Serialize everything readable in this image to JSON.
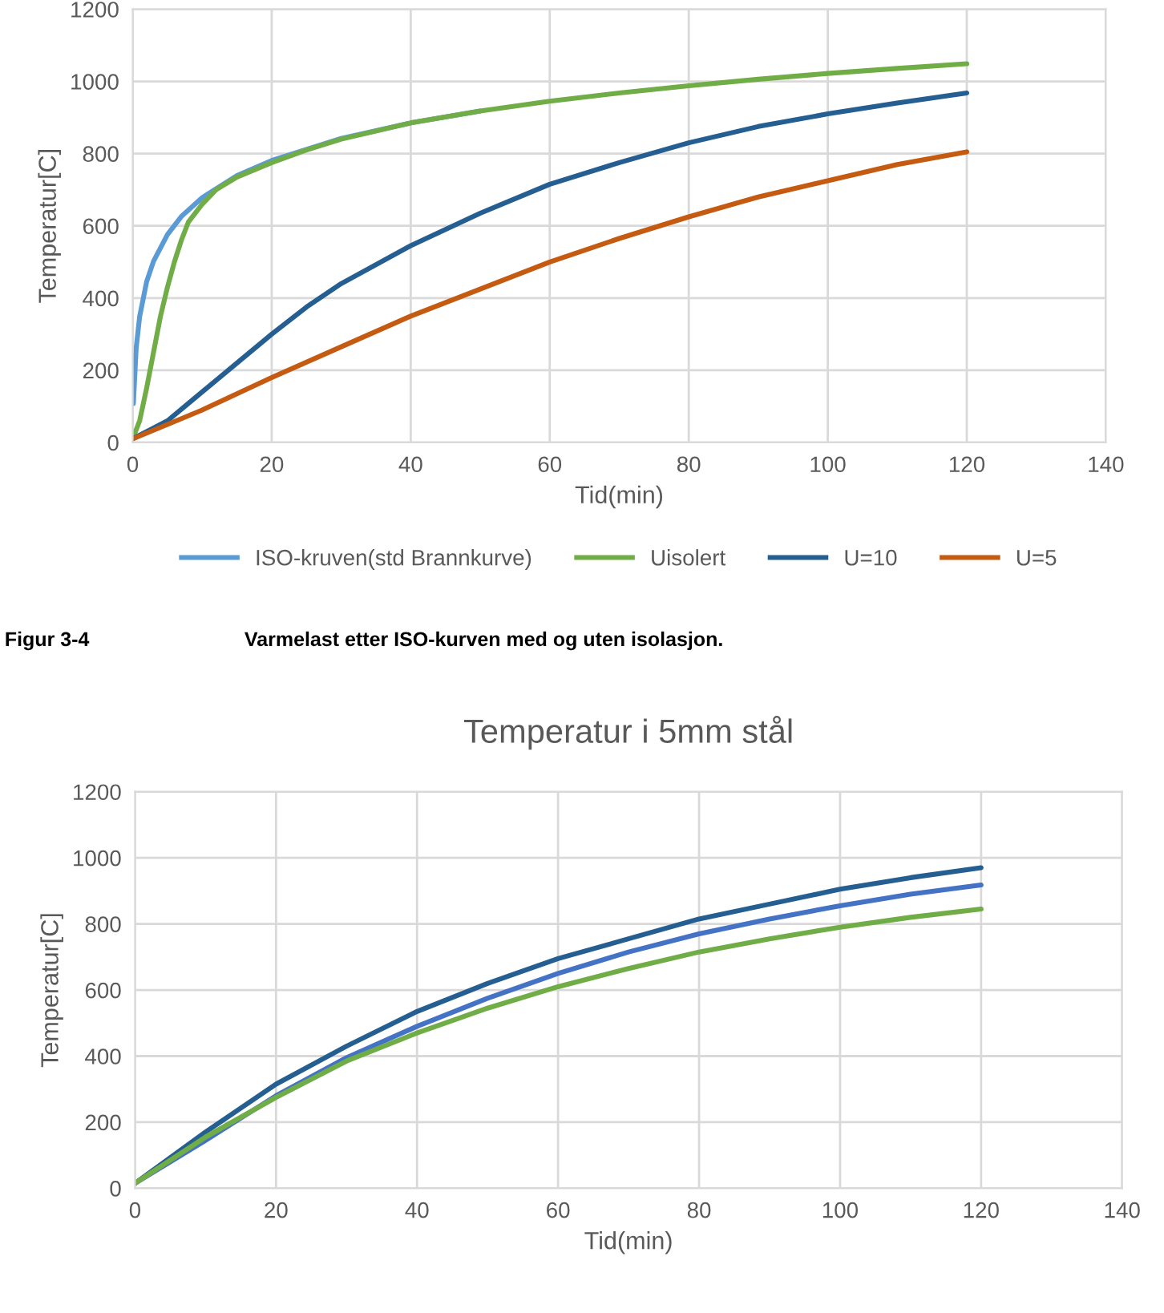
{
  "chart_data": [
    {
      "type": "line",
      "xlabel": "Tid(min)",
      "ylabel": "Temperatur[C]",
      "xlim": [
        0,
        140
      ],
      "xticks": [
        0,
        20,
        40,
        60,
        80,
        100,
        120,
        140
      ],
      "ylim": [
        0,
        1200
      ],
      "yticks": [
        0,
        200,
        400,
        600,
        800,
        1000,
        1200
      ],
      "grid": true,
      "legend": "bottom",
      "marker": "none",
      "line_style": "solid",
      "annotations": [
        "Figur 3-4",
        "Varmelast etter ISO-kurven med og uten isolasjon."
      ],
      "series": [
        {
          "name": "ISO-kruven(std Brannkurve)",
          "color": "#5b9bd5",
          "x": [
            0.1,
            0.5,
            1,
            2,
            3,
            5,
            7,
            10,
            15,
            20,
            30,
            40,
            50
          ],
          "values": [
            108,
            261,
            349,
            445,
            502,
            576,
            626,
            678,
            739,
            781,
            842,
            885,
            918
          ]
        },
        {
          "name": "Uisolert",
          "color": "#70ad47",
          "x": [
            0,
            1,
            2,
            3,
            4,
            5,
            6,
            7,
            8,
            10,
            12,
            15,
            20,
            25,
            30,
            40,
            50,
            60,
            70,
            80,
            90,
            100,
            110,
            120
          ],
          "values": [
            10,
            60,
            150,
            250,
            350,
            430,
            500,
            560,
            610,
            660,
            700,
            735,
            775,
            810,
            840,
            885,
            918,
            945,
            968,
            988,
            1006,
            1022,
            1036,
            1049
          ]
        },
        {
          "name": "U=10",
          "color": "#255e91",
          "x": [
            0,
            5,
            10,
            15,
            20,
            25,
            30,
            40,
            50,
            60,
            70,
            80,
            90,
            100,
            110,
            120
          ],
          "values": [
            10,
            60,
            140,
            220,
            300,
            375,
            440,
            545,
            635,
            715,
            775,
            830,
            875,
            910,
            940,
            968
          ]
        },
        {
          "name": "U=5",
          "color": "#c55a11",
          "x": [
            0,
            10,
            20,
            30,
            40,
            50,
            60,
            70,
            80,
            90,
            100,
            110,
            120
          ],
          "values": [
            10,
            90,
            180,
            265,
            350,
            425,
            500,
            565,
            625,
            680,
            725,
            770,
            805
          ]
        }
      ]
    },
    {
      "type": "line",
      "title": "Temperatur i 5mm stål",
      "xlabel": "Tid(min)",
      "ylabel": "Temperatur[C]",
      "xlim": [
        0,
        140
      ],
      "xticks": [
        0,
        20,
        40,
        60,
        80,
        100,
        120,
        140
      ],
      "ylim": [
        0,
        1200
      ],
      "yticks": [
        0,
        200,
        400,
        600,
        800,
        1000,
        1200
      ],
      "grid": true,
      "marker": "none",
      "line_style": "solid",
      "series": [
        {
          "color": "#255e91",
          "x": [
            0,
            10,
            20,
            30,
            40,
            50,
            60,
            70,
            80,
            90,
            100,
            110,
            120
          ],
          "values": [
            15,
            170,
            315,
            430,
            535,
            620,
            695,
            755,
            815,
            860,
            905,
            940,
            970
          ]
        },
        {
          "color": "#4472c4",
          "x": [
            0,
            10,
            20,
            30,
            40,
            50,
            60,
            70,
            80,
            90,
            100,
            110,
            120
          ],
          "values": [
            15,
            145,
            280,
            395,
            490,
            575,
            650,
            715,
            770,
            815,
            855,
            890,
            918
          ]
        },
        {
          "color": "#70ad47",
          "x": [
            0,
            10,
            20,
            30,
            40,
            50,
            60,
            70,
            80,
            90,
            100,
            110,
            120
          ],
          "values": [
            15,
            155,
            275,
            385,
            470,
            545,
            610,
            665,
            715,
            755,
            790,
            820,
            845
          ]
        }
      ]
    }
  ]
}
